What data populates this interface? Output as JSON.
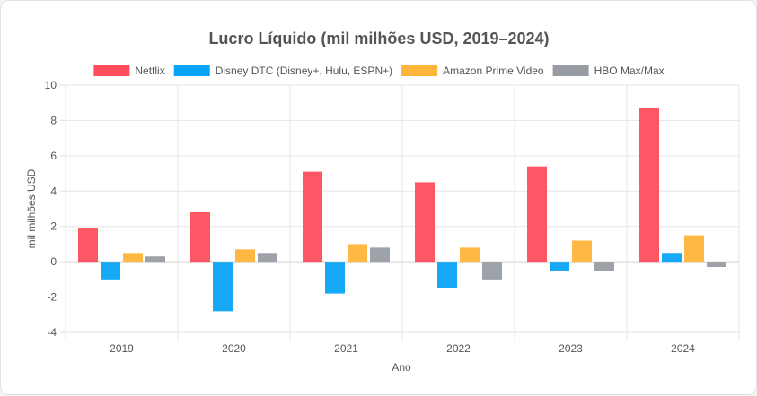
{
  "chart_data": {
    "type": "bar",
    "title": "Lucro Líquido (mil milhões USD, 2019–2024)",
    "xlabel": "Ano",
    "ylabel": "mil milhões USD",
    "ylim": [
      -4,
      10
    ],
    "yticks": [
      -4,
      -2,
      0,
      2,
      4,
      6,
      8,
      10
    ],
    "grid": true,
    "legend_position": "top",
    "categories": [
      "2019",
      "2020",
      "2021",
      "2022",
      "2023",
      "2024"
    ],
    "series": [
      {
        "name": "Netflix",
        "color": "#ff4d5e",
        "values": [
          1.9,
          2.8,
          5.1,
          4.5,
          5.4,
          8.7
        ]
      },
      {
        "name": "Disney DTC (Disney+, Hulu, ESPN+)",
        "color": "#0aa4f6",
        "values": [
          -1.0,
          -2.8,
          -1.8,
          -1.5,
          -0.5,
          0.5
        ]
      },
      {
        "name": "Amazon Prime Video",
        "color": "#ffb43a",
        "values": [
          0.5,
          0.7,
          1.0,
          0.8,
          1.2,
          1.5
        ]
      },
      {
        "name": "HBO Max/Max",
        "color": "#979da3",
        "values": [
          0.3,
          0.5,
          0.8,
          -1.0,
          -0.5,
          -0.3
        ]
      }
    ]
  }
}
